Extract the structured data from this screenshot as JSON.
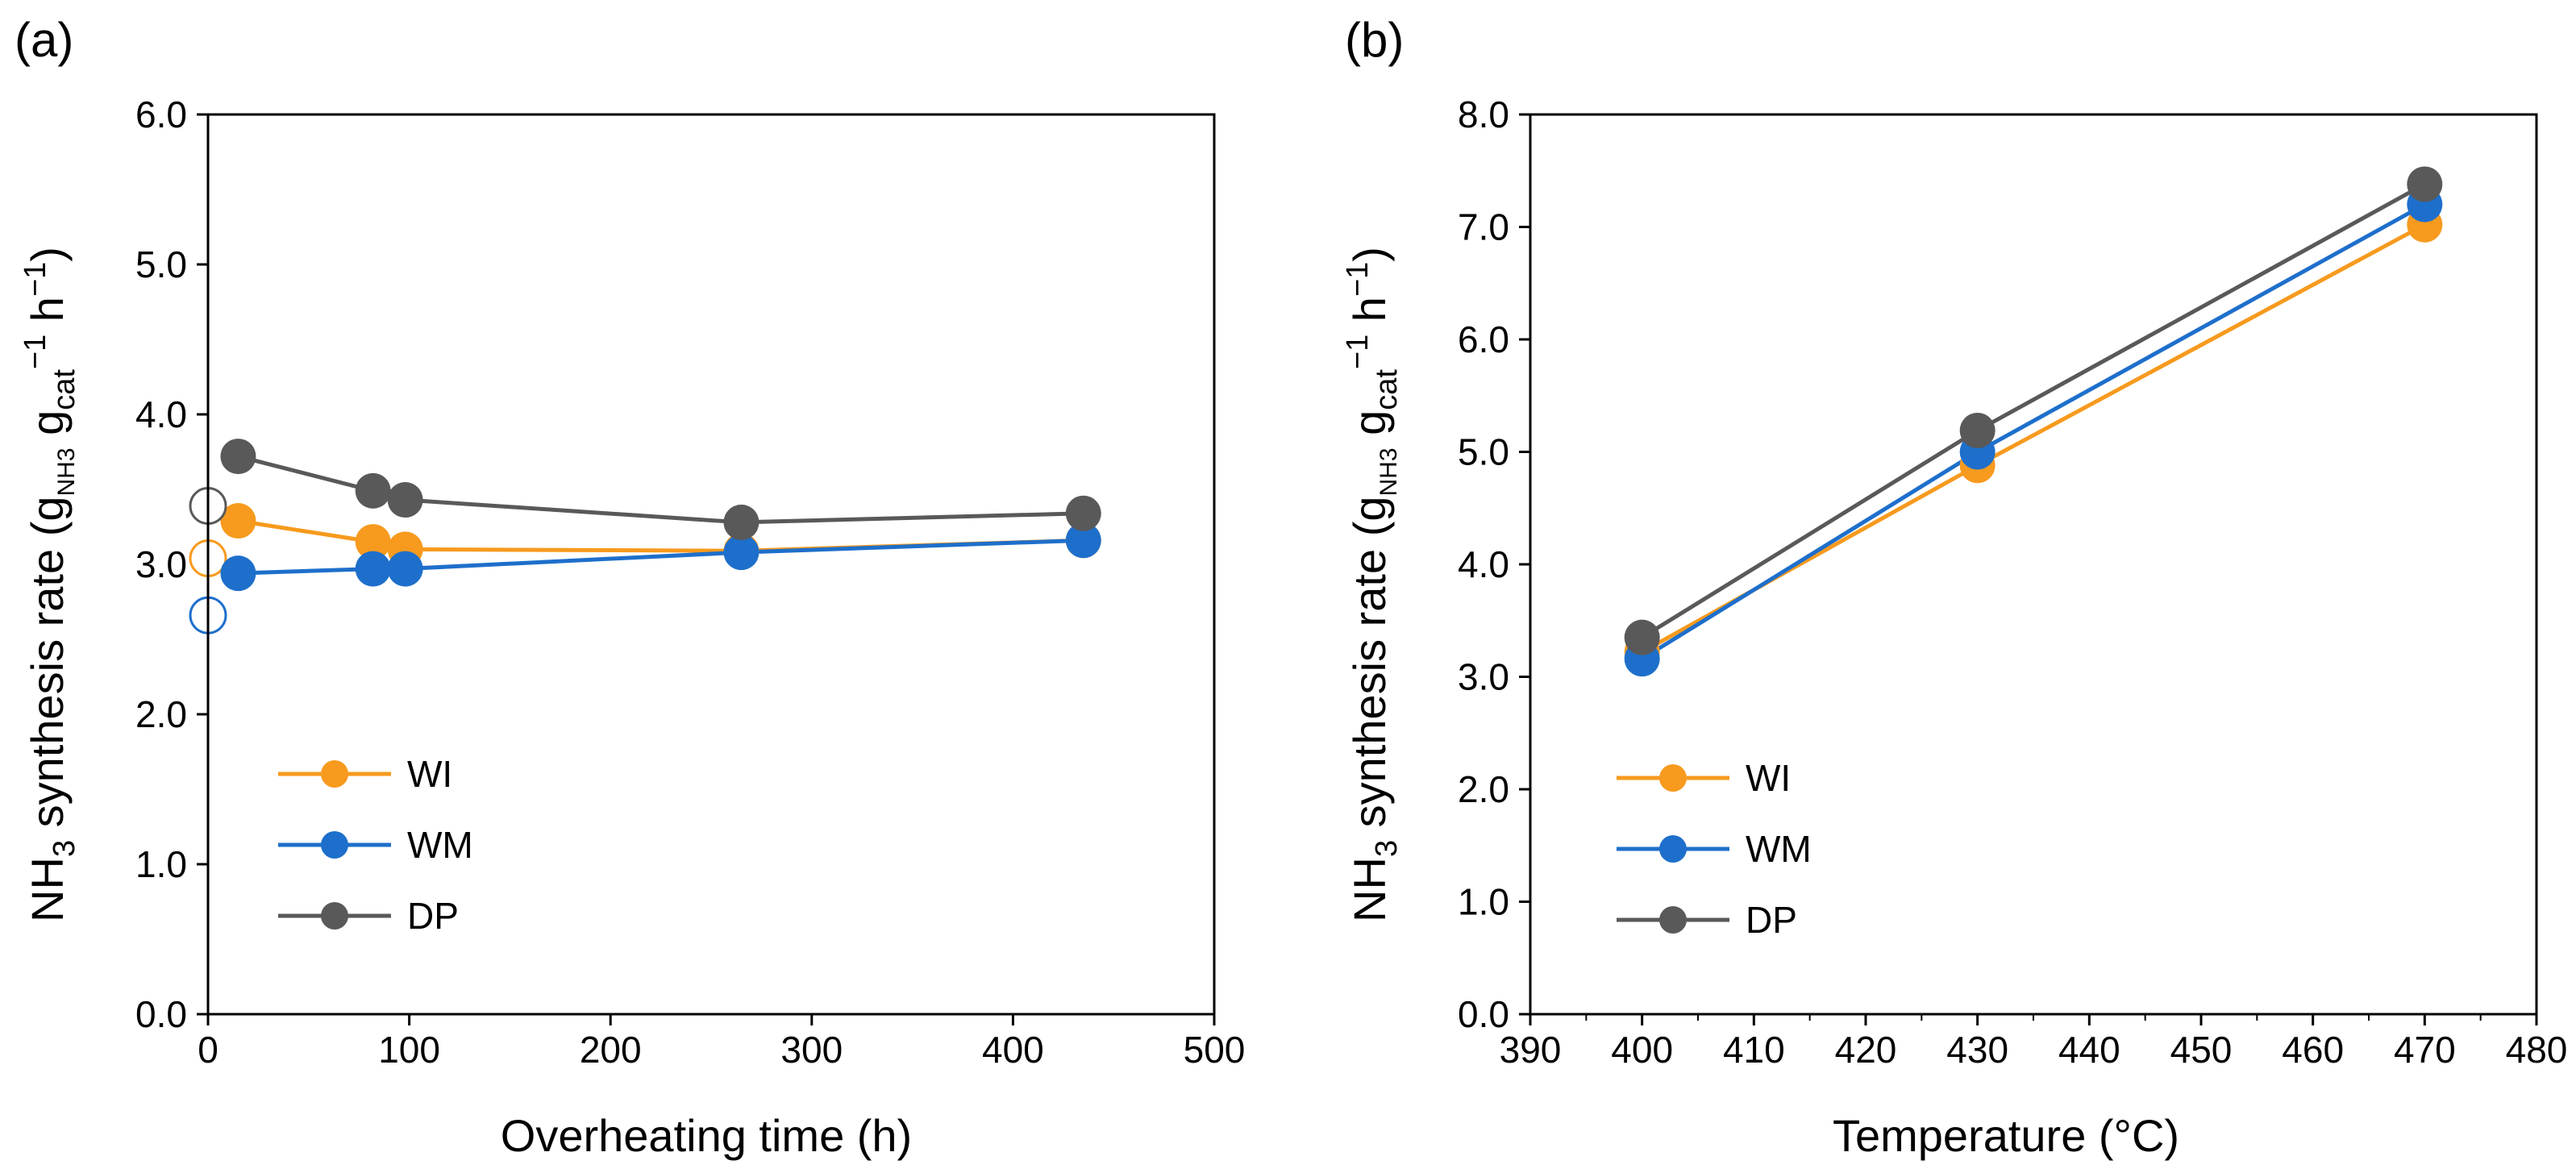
{
  "panels": [
    {
      "label": "(a)"
    },
    {
      "label": "(b)"
    }
  ],
  "colors": {
    "WI": "#F79A1E",
    "WM": "#1E6FCB",
    "DP": "#595959"
  },
  "chart_data": [
    {
      "type": "scatter",
      "panel": "(a)",
      "xlabel": "Overheating time (h)",
      "ylabel": {
        "prefix": "NH",
        "sub1": "3",
        "mid": " synthesis rate (g",
        "sub2": "NH3",
        "mid2": " g",
        "sub3": "cat",
        "sup": "−1",
        "suffix": " h",
        "sup2": "−1",
        "close": ")"
      },
      "xlim": [
        0,
        500
      ],
      "ylim": [
        0,
        6
      ],
      "xticks": [
        "0",
        "100",
        "200",
        "300",
        "400",
        "500"
      ],
      "yticks": [
        "0.0",
        "1.0",
        "2.0",
        "3.0",
        "4.0",
        "5.0",
        "6.0"
      ],
      "legend_position": "lower-left",
      "series": [
        {
          "name": "WI",
          "color": "#F79A1E",
          "x": [
            15,
            82,
            98,
            265,
            435
          ],
          "y": [
            3.29,
            3.15,
            3.1,
            3.09,
            3.16
          ],
          "open_point": {
            "x": 0,
            "y": 3.04
          }
        },
        {
          "name": "WM",
          "color": "#1E6FCB",
          "x": [
            15,
            82,
            98,
            265,
            435
          ],
          "y": [
            2.94,
            2.97,
            2.97,
            3.08,
            3.16
          ],
          "open_point": {
            "x": 0,
            "y": 2.66
          }
        },
        {
          "name": "DP",
          "color": "#595959",
          "x": [
            15,
            82,
            98,
            265,
            435
          ],
          "y": [
            3.72,
            3.49,
            3.43,
            3.28,
            3.34
          ],
          "open_point": {
            "x": 0,
            "y": 3.39
          }
        }
      ]
    },
    {
      "type": "line",
      "panel": "(b)",
      "xlabel": "Temperature (°C)",
      "ylabel": {
        "prefix": "NH",
        "sub1": "3",
        "mid": " synthesis rate (g",
        "sub2": "NH3",
        "mid2": " g",
        "sub3": "cat",
        "sup": "−1",
        "suffix": " h",
        "sup2": "−1",
        "close": ")"
      },
      "xlim": [
        390,
        480
      ],
      "ylim": [
        0,
        8
      ],
      "xticks": [
        "390",
        "400",
        "410",
        "420",
        "430",
        "440",
        "450",
        "460",
        "470",
        "480"
      ],
      "yticks": [
        "0.0",
        "1.0",
        "2.0",
        "3.0",
        "4.0",
        "5.0",
        "6.0",
        "7.0",
        "8.0"
      ],
      "legend_position": "lower-left",
      "series": [
        {
          "name": "WI",
          "color": "#F79A1E",
          "x": [
            400,
            430,
            470
          ],
          "y": [
            3.22,
            4.88,
            7.02
          ]
        },
        {
          "name": "WM",
          "color": "#1E6FCB",
          "x": [
            400,
            430,
            470
          ],
          "y": [
            3.16,
            5.0,
            7.2
          ]
        },
        {
          "name": "DP",
          "color": "#595959",
          "x": [
            400,
            430,
            470
          ],
          "y": [
            3.35,
            5.19,
            7.38
          ]
        }
      ]
    }
  ]
}
